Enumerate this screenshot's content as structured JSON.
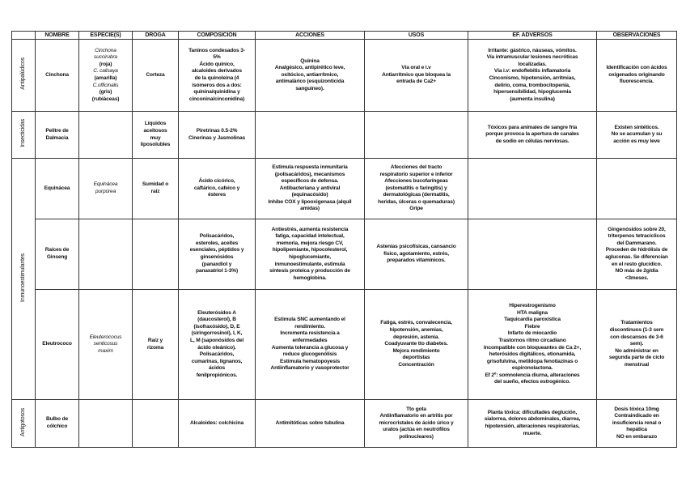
{
  "headers": [
    "",
    "NOMBRE",
    "ESPECIE(S)",
    "DROGA",
    "COMPOSICIÓN",
    "ACCIONES",
    "USOS",
    "EF. ADVERSOS",
    "OBSERVACIONES"
  ],
  "groups": [
    {
      "label": "Antipalúdicos",
      "rows": 1
    },
    {
      "label": "Insecticidas",
      "rows": 1
    },
    {
      "label": "Inmunoestimulantes",
      "rows": 3
    },
    {
      "label": "Antigotosos",
      "rows": 1
    }
  ],
  "rows": [
    {
      "nombre": "Cinchona",
      "especie": [
        {
          "text": "Cinchona\nsuccirubra",
          "italic": true
        },
        {
          "text": "(roja)",
          "italic": false
        },
        {
          "text": "C. calisaya",
          "italic": true
        },
        {
          "text": "(amarilla)",
          "italic": false
        },
        {
          "text": "C.officinalis",
          "italic": true
        },
        {
          "text": "(gris)\n(rubiáceas)",
          "italic": false
        }
      ],
      "droga": "Corteza",
      "composicion": "Taninos condesados 3-\n5%\nÁcido quínico,\nalcaloides derivados\nde la quinoleína (4\nisómeros dos a dos:\nquinina/quinidina y\ncinconina/cinconidina)",
      "acciones": "Quinina\nAnalgésico, antipirético leve,\noxitócico, antiarrítmico,\nantimalárico (esquizonticida\nsanguíneo).",
      "usos": "Vía oral e i.v\nAntiarrítmico que bloquea la\nentrada de Ca2+",
      "adversos": "Irritante: gástrico, náuseas, vómitos.\nVía intramuscular lesiones necróticas\nlocalizadas.\nVía i.v: endoflebitis inflamatoria\nCinconismo, hipotensión, arritmias,\ndelirio, coma, trombocitopenia,\nhipersensibilidad, hipoglucemia\n(aumenta insulina)",
      "observaciones": "Identificación con ácidos\noxigenados originando\nfluorescencia."
    },
    {
      "nombre": "Pelitre de\nDalmacia",
      "especie": [],
      "droga": "Líquidos\naceitosos\nmuy\nliposolubles",
      "composicion": "Piretrinas 0.5-2%\nCinerinas y Jasmolinas",
      "acciones": "",
      "usos": "",
      "adversos": "Tóxicos para animales de sangre fría\nporque provoca la apertura de canales\nde sodio en células nerviosas.",
      "observaciones": "Existen sintéticos.\nNo se acumulan y su\nacción es muy leve"
    },
    {
      "nombre": "Equinácea",
      "especie": [
        {
          "text": "Equinácea\npurpúrea",
          "italic": true
        }
      ],
      "droga": "Sumidad o\nraíz",
      "composicion": "Ácido cicórico,\ncaftárico, cafeico y\nésteres",
      "acciones": "Estimula respuesta inmunitaria\n(polisacáridos), mecanismos\nespecíficos de defensa.\nAntibacteriana y antiviral\n(equinacósido)\nInhibe COX y lipooxigenasa (alquil\namidas)",
      "usos": "Afecciones del tracto\nrespiratorio superior e inferior\nAfecciones bucofaríngeas\n(estomatitis o faringitis) y\ndermatológicas (dermatitis,\nheridas, úlceras o quemaduras)\nGripe",
      "adversos": "",
      "observaciones": ""
    },
    {
      "nombre": "Raíces de\nGinseng",
      "especie": [],
      "droga": "",
      "composicion": "Polisacáridos,\nesteroles, aceites\nesenciales, péptidos y\nginsenósidos\n(panaxdiol y\npanaxatriol 1-3%)",
      "acciones": "Antiestrés, aumenta resistencia\nfatiga, capacidad intelectual,\nmemoria, mejora riesgo CV,\nhipolipemiante, hipocolesterol,\nhipoglucemiante,\ninmunoestimulante, estimula\nsíntesis proteica y producción de\nhemoglobina.",
      "usos": "Astenias psicofísicas, cansancio\nfísico, agotamiento, estrés,\npreparados vitamínicos.",
      "adversos": "",
      "observaciones": "Gingenósidos sobre 20,\ntriterpenos tetracíclicos\ndel Dammarano.\nProceden de hidrólisis de\nagluconas. Se diferencian\nen el resto glucídico.\nNO más de 2g/día\n<3meses."
    },
    {
      "nombre": "Eleutrococo",
      "especie": [
        {
          "text": "Eleuterococus\nsenticosus\nmaxim",
          "italic": true
        }
      ],
      "droga": "Raíz y\nrizoma",
      "composicion": "Eleuterósidos A\n(daucosterol), B\n(isofraxósido), D, E\n(siringorresinol), I, K,\nL, M (saponósidos del\nácido oleánico).\nPolisacáridos,\ncumarinas, lignanos,\nácidos\nfenilpropiónicos.",
      "acciones": "Estimula SNC aumentando el\nrendimiento.\nIncrementa resistencia a\nenfermedades\nAumenta tolerancia a glucosa y\nreduce glucogenólisis\nEstimula hematopoyesis\nAntiinflamatorio y vasoprotector",
      "usos": "Fatiga, estrés, convalecencia,\nhipotensión, anemias,\ndepresión, astenia.\nCoadyuvante tto diabetes.\nMejora rendimiento\ndeportistas\nConcentración",
      "adversos": "Hiperestrogenismo\nHTA maligna\nTaquicardia paroxística\nFiebre\nInfarto de miocardio\nTrastornos ritmo circadiano\nIncompatible con bloqueantes de Ca 2+,\nheterósidos digitálicos, etionamida,\ngrisofulvina, metildopa fenotiazinas o\nespironolactona.\nEf 2º: somnolencia diurna, alteraciones\ndel sueño, efectos estrogénico.",
      "observaciones": "Tratamientos\ndiscontinuos (1-3 sem\ncon descansos de 3-6\nsem).\nNo administrar en\nsegunda parte de ciclo\nmenstrual"
    },
    {
      "nombre": "Bulbo de\ncólchico",
      "especie": [],
      "droga": "",
      "composicion": "Alcaloides: colchicina",
      "acciones": "Antimitóticas sobre tubulina",
      "usos": "Tto gota\nAntiinflamatorio en artritis por\nmicrocristales de ácido úrico y\nuratos (actúa en neutrófilos\npolinucleares)",
      "adversos": "Planta tóxica: dificultades deglución,\nsialorrea, dolores abdominales, diarrea,\nhipotensión, alteraciones respiratorias,\nmuerte.",
      "observaciones": "Dosis tóxica 10mg\nContraindicado en\ninsuficiencia renal o\nhepática\nNO en embarazo"
    }
  ]
}
